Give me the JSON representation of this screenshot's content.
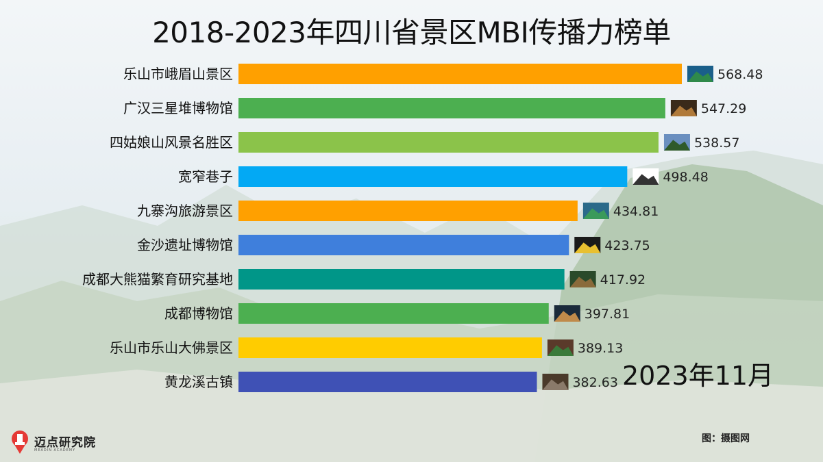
{
  "title": "2018-2023年四川省景区MBI传播力榜单",
  "period": "2023年11月",
  "brand": {
    "name": "迈点研究院",
    "sub": "MEADIN ACADEMY"
  },
  "credit": "图：摄图网",
  "chart_data": {
    "type": "bar",
    "orientation": "horizontal",
    "title": "2018-2023年四川省景区MBI传播力榜单",
    "xlim": [
      0,
      600
    ],
    "categories": [
      "乐山市峨眉山景区",
      "广汉三星堆博物馆",
      "四姑娘山风景名胜区",
      "宽窄巷子",
      "九寨沟旅游景区",
      "金沙遗址博物馆",
      "成都大熊猫繁育研究基地",
      "成都博物馆",
      "乐山市乐山大佛景区",
      "黄龙溪古镇"
    ],
    "values": [
      568.48,
      547.29,
      538.57,
      498.48,
      434.81,
      423.75,
      417.92,
      397.81,
      389.13,
      382.63
    ],
    "labels": [
      "568.48",
      "547.29",
      "538.57",
      "498.48",
      "434.81",
      "423.75",
      "417.92",
      "397.81",
      "389.13",
      "382.63"
    ],
    "colors": [
      "#ffa000",
      "#4caf50",
      "#8bc34a",
      "#03a9f4",
      "#ffa000",
      "#3f7fdc",
      "#009688",
      "#4caf50",
      "#ffcc00",
      "#3f51b5"
    ],
    "icons": [
      "mountain-photo-icon",
      "artifact-photo-icon",
      "mountain-photo-icon",
      "alley-logo-icon",
      "lake-photo-icon",
      "sun-bird-photo-icon",
      "panda-photo-icon",
      "museum-photo-icon",
      "buddha-photo-icon",
      "town-photo-icon"
    ],
    "grid": false,
    "legend": "none"
  }
}
